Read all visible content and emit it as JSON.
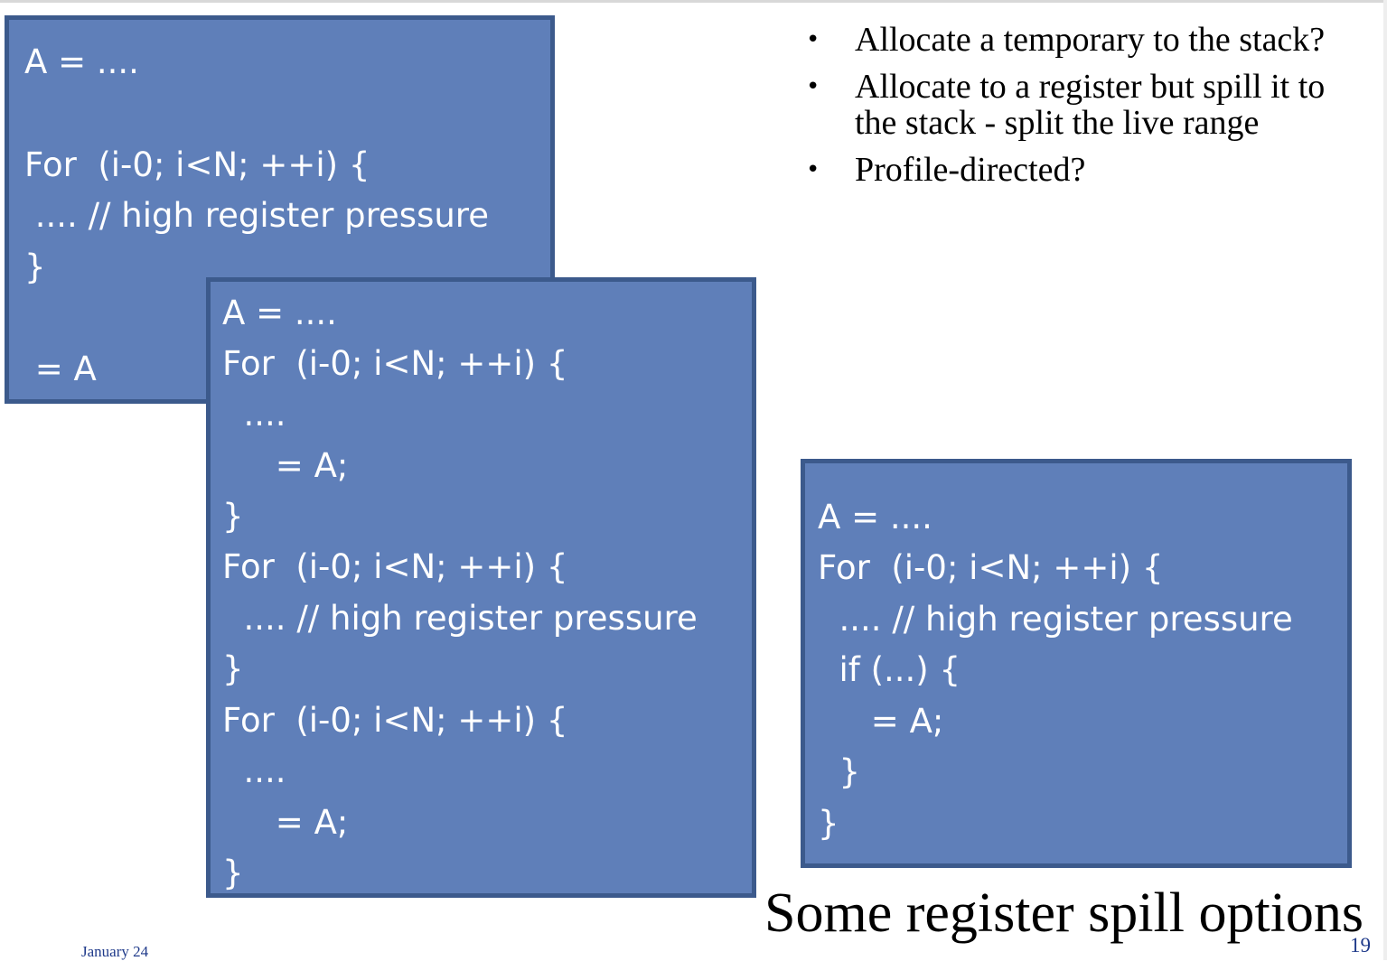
{
  "bullets": [
    "Allocate a temporary to the stack?",
    "Allocate to a register but spill it to the stack  - split the live range",
    "Profile-directed?"
  ],
  "bullet_glyph": "•",
  "code_box_1": [
    "A = ....",
    "For  (i-0; i<N; ++i) {",
    " .... // high register pressure",
    "}",
    " = A"
  ],
  "code_box_2": [
    "A = ....",
    "For  (i-0; i<N; ++i) {",
    "  ....",
    "     = A;",
    "}",
    "For  (i-0; i<N; ++i) {",
    "  .... // high register pressure",
    "}",
    "For  (i-0; i<N; ++i) {",
    "  ....",
    "     = A;",
    "}"
  ],
  "code_box_3": [
    "A = ....",
    "For  (i-0; i<N; ++i) {",
    "  .... // high register pressure",
    "  if (...) {",
    "     = A;",
    "  }",
    "}"
  ],
  "title": "Some register spill options",
  "footer": {
    "date": "January 24",
    "page_number": "19"
  },
  "colors": {
    "box_fill": "#5f7fb9",
    "box_border": "#3c5a8c",
    "footer_text": "#1f3a8a"
  }
}
